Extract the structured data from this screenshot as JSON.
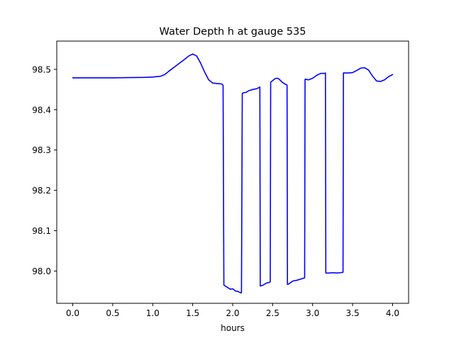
{
  "chart_data": {
    "type": "line",
    "title": "Water Depth h at gauge 535",
    "xlabel": "hours",
    "ylabel": "",
    "xlim": [
      -0.2,
      4.2
    ],
    "ylim": [
      97.92,
      98.57
    ],
    "grid": false,
    "x_ticks": [
      0.0,
      0.5,
      1.0,
      1.5,
      2.0,
      2.5,
      3.0,
      3.5,
      4.0
    ],
    "x_tick_labels": [
      "0.0",
      "0.5",
      "1.0",
      "1.5",
      "2.0",
      "2.5",
      "3.0",
      "3.5",
      "4.0"
    ],
    "y_ticks": [
      98.0,
      98.1,
      98.2,
      98.3,
      98.4,
      98.5
    ],
    "y_tick_labels": [
      "98.0",
      "98.1",
      "98.2",
      "98.3",
      "98.4",
      "98.5"
    ],
    "series": [
      {
        "color": "#0000ff",
        "x": [
          0.0,
          0.5,
          0.9,
          1.0,
          1.1,
          1.15,
          1.2,
          1.3,
          1.4,
          1.45,
          1.5,
          1.55,
          1.6,
          1.65,
          1.7,
          1.75,
          1.8,
          1.85,
          1.87,
          1.88,
          1.89,
          1.93,
          1.97,
          2.0,
          2.02,
          2.04,
          2.06,
          2.08,
          2.1,
          2.11,
          2.12,
          2.125,
          2.13,
          2.17,
          2.2,
          2.25,
          2.3,
          2.32,
          2.34,
          2.345,
          2.35,
          2.38,
          2.42,
          2.46,
          2.47,
          2.475,
          2.48,
          2.5,
          2.53,
          2.56,
          2.58,
          2.6,
          2.62,
          2.65,
          2.67,
          2.68,
          2.685,
          2.69,
          2.7,
          2.73,
          2.75,
          2.77,
          2.8,
          2.85,
          2.88,
          2.9,
          2.905,
          2.91,
          2.92,
          2.95,
          3.0,
          3.05,
          3.1,
          3.15,
          3.16,
          3.165,
          3.17,
          3.2,
          3.25,
          3.3,
          3.35,
          3.38,
          3.385,
          3.39,
          3.45,
          3.5,
          3.55,
          3.6,
          3.65,
          3.7,
          3.75,
          3.8,
          3.85,
          3.9,
          3.95,
          4.0
        ],
        "y": [
          98.479,
          98.479,
          98.48,
          98.481,
          98.483,
          98.487,
          98.495,
          98.51,
          98.525,
          98.533,
          98.538,
          98.533,
          98.515,
          98.493,
          98.474,
          98.466,
          98.465,
          98.464,
          98.463,
          98.46,
          97.965,
          97.96,
          97.955,
          97.956,
          97.953,
          97.95,
          97.95,
          97.948,
          97.946,
          97.946,
          98.44,
          98.44,
          98.442,
          98.443,
          98.447,
          98.45,
          98.452,
          98.454,
          98.456,
          97.963,
          97.963,
          97.965,
          97.97,
          97.972,
          97.973,
          98.468,
          98.469,
          98.472,
          98.477,
          98.478,
          98.476,
          98.472,
          98.468,
          98.464,
          98.462,
          98.461,
          97.967,
          97.967,
          97.968,
          97.972,
          97.975,
          97.976,
          97.977,
          97.98,
          97.982,
          97.983,
          98.475,
          98.476,
          98.475,
          98.474,
          98.478,
          98.485,
          98.49,
          98.49,
          98.491,
          97.995,
          97.995,
          97.995,
          97.996,
          97.995,
          97.996,
          97.997,
          98.491,
          98.491,
          98.491,
          98.492,
          98.497,
          98.503,
          98.504,
          98.498,
          98.483,
          98.471,
          98.47,
          98.474,
          98.482,
          98.487
        ]
      }
    ]
  }
}
